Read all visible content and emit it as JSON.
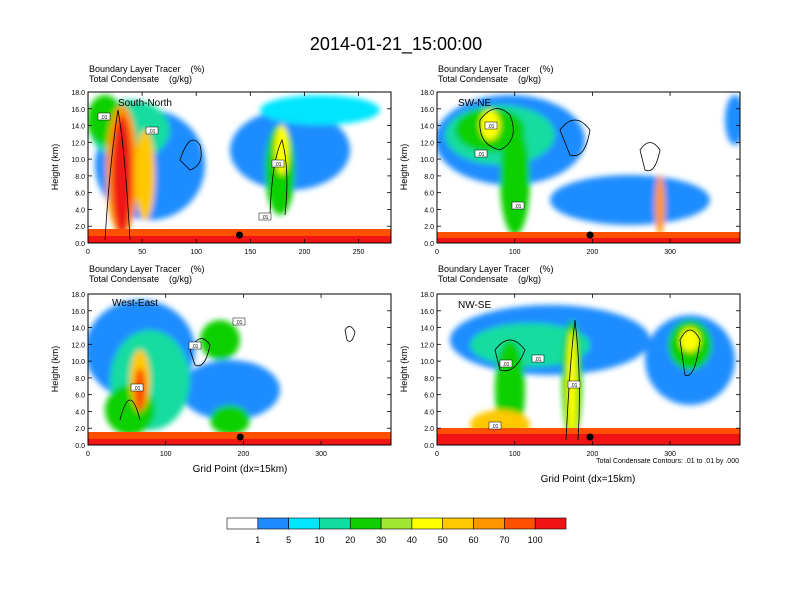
{
  "title": "2014-01-21_15:00:00",
  "colorbar": {
    "labels": [
      "1",
      "5",
      "10",
      "20",
      "30",
      "40",
      "50",
      "60",
      "70",
      "100"
    ],
    "colors": [
      "#ffffff",
      "#1e8cff",
      "#00e6ff",
      "#14dca0",
      "#10d000",
      "#a0e632",
      "#ffff00",
      "#ffc800",
      "#ff9600",
      "#ff5000",
      "#f01414"
    ]
  },
  "contour_note": "Total Condensate Contours: .01 to .01 by .000",
  "marker_label": ".01",
  "chart_data": [
    {
      "type": "heatmap",
      "name": "South-North",
      "header_line1": "Boundary Layer Tracer    (%)",
      "header_line2": "Total Condensate    (g/kg)",
      "ylabel": "Height (km)",
      "xlabel": "",
      "xlim": [
        0,
        280
      ],
      "ylim": [
        0,
        18
      ],
      "xticks": [
        0,
        50,
        100,
        150,
        200,
        250
      ],
      "yticks": [
        "0.0",
        "2.0",
        "4.0",
        "6.0",
        "8.0",
        "10.0",
        "12.0",
        "14.0",
        "16.0",
        "18.0"
      ],
      "marker_x": 140
    },
    {
      "type": "heatmap",
      "name": "SW-NE",
      "header_line1": "Boundary Layer Tracer    (%)",
      "header_line2": "Total Condensate    (g/kg)",
      "ylabel": "Height (km)",
      "xlabel": "",
      "xlim": [
        0,
        390
      ],
      "ylim": [
        0,
        18
      ],
      "xticks": [
        0,
        100,
        200,
        300
      ],
      "yticks": [
        "0.0",
        "2.0",
        "4.0",
        "6.0",
        "8.0",
        "10.0",
        "12.0",
        "14.0",
        "16.0",
        "18.0"
      ],
      "marker_x": 197
    },
    {
      "type": "heatmap",
      "name": "West-East",
      "header_line1": "Boundary Layer Tracer    (%)",
      "header_line2": "Total Condensate    (g/kg)",
      "ylabel": "Height (km)",
      "xlabel": "Grid Point (dx=15km)",
      "xlim": [
        0,
        390
      ],
      "ylim": [
        0,
        18
      ],
      "xticks": [
        0,
        100,
        200,
        300
      ],
      "yticks": [
        "0.0",
        "2.0",
        "4.0",
        "6.0",
        "8.0",
        "10.0",
        "12.0",
        "14.0",
        "16.0",
        "18.0"
      ],
      "marker_x": 196
    },
    {
      "type": "heatmap",
      "name": "NW-SE",
      "header_line1": "Boundary Layer Tracer    (%)",
      "header_line2": "Total Condensate    (g/kg)",
      "ylabel": "Height (km)",
      "xlabel": "Grid Point (dx=15km)",
      "xlim": [
        0,
        390
      ],
      "ylim": [
        0,
        18
      ],
      "xticks": [
        0,
        100,
        200,
        300
      ],
      "yticks": [
        "0.0",
        "2.0",
        "4.0",
        "6.0",
        "8.0",
        "10.0",
        "12.0",
        "14.0",
        "16.0",
        "18.0"
      ],
      "marker_x": 197
    }
  ]
}
